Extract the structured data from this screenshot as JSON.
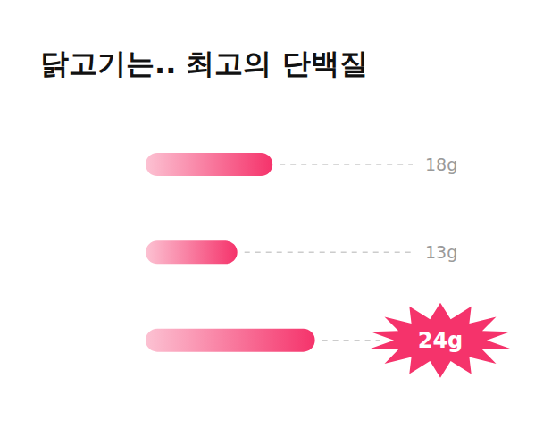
{
  "chart_data": {
    "type": "bar",
    "title": "닭고기는.. 최고의 단백질",
    "orientation": "horizontal",
    "categories": [
      null,
      null,
      null
    ],
    "values": [
      18,
      13,
      24
    ],
    "value_labels": [
      "18g",
      "13g",
      "24g"
    ],
    "data_labels": true,
    "color": "#f5336b",
    "xlim": [
      0,
      40
    ],
    "tick_labels": false,
    "grid": false
  }
}
